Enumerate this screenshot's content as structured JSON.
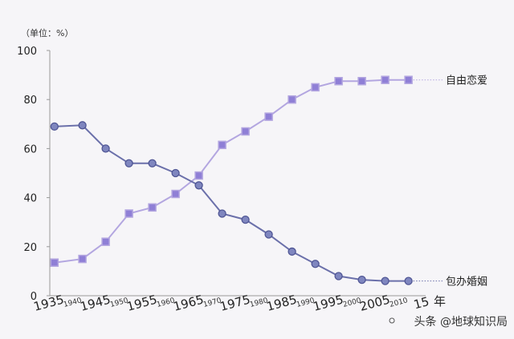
{
  "chart_data": {
    "type": "line",
    "unit_label": "（单位：%）",
    "ylim": [
      0,
      100
    ],
    "yticks": [
      0,
      20,
      40,
      60,
      80,
      100
    ],
    "xlim": [
      1935,
      2015
    ],
    "major_ticks": [
      {
        "value": 1935,
        "label": "1935"
      },
      {
        "value": 1945,
        "label": "1945"
      },
      {
        "value": 1955,
        "label": "1955"
      },
      {
        "value": 1965,
        "label": "1965"
      },
      {
        "value": 1975,
        "label": "1975"
      },
      {
        "value": 1985,
        "label": "1985"
      },
      {
        "value": 1995,
        "label": "1995"
      },
      {
        "value": 2005,
        "label": "2005"
      },
      {
        "value": 2015,
        "label": "15"
      }
    ],
    "minor_ticks": [
      {
        "value": 1940,
        "label": "1940"
      },
      {
        "value": 1950,
        "label": "1950"
      },
      {
        "value": 1960,
        "label": "1960"
      },
      {
        "value": 1970,
        "label": "1970"
      },
      {
        "value": 1980,
        "label": "1980"
      },
      {
        "value": 1990,
        "label": "1990"
      },
      {
        "value": 2000,
        "label": "2000"
      },
      {
        "value": 2010,
        "label": "2010"
      }
    ],
    "x_unit": "年",
    "grid": false,
    "series": [
      {
        "name": "自由恋爱",
        "color": "#b3a6e0",
        "marker": "square",
        "x": [
          1936,
          1942,
          1947,
          1952,
          1957,
          1962,
          1967,
          1972,
          1977,
          1982,
          1987,
          1992,
          1997,
          2002,
          2007,
          2012
        ],
        "values": [
          13.5,
          15,
          22,
          33.5,
          36,
          41.5,
          49,
          61.5,
          67,
          73,
          80,
          85,
          87.5,
          87.5,
          88,
          88
        ]
      },
      {
        "name": "包办婚姻",
        "color": "#6b70aa",
        "marker": "circle",
        "x": [
          1936,
          1942,
          1947,
          1952,
          1957,
          1962,
          1967,
          1972,
          1977,
          1982,
          1987,
          1992,
          1997,
          2002,
          2007,
          2012
        ],
        "values": [
          69,
          69.5,
          60,
          54,
          54,
          50,
          45,
          33.5,
          31,
          25,
          18,
          13,
          8,
          6.5,
          6,
          6
        ]
      }
    ]
  },
  "watermark": "头条 @地球知识局"
}
